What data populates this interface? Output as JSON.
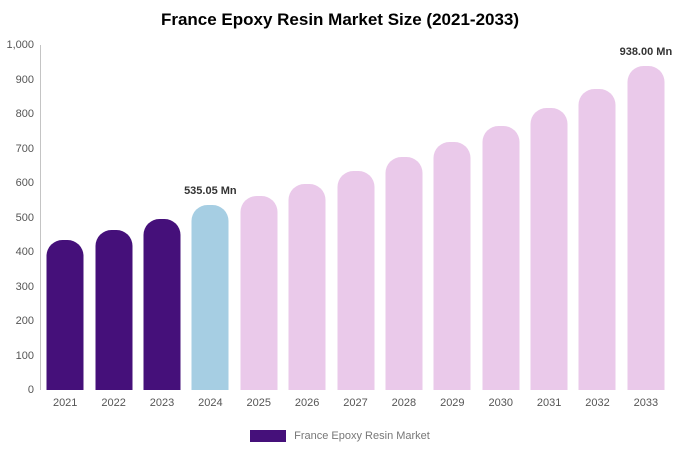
{
  "title": "France Epoxy Resin Market Size (2021-2033)",
  "legend": {
    "label": "France Epoxy Resin Market",
    "swatch_color": "#45107a"
  },
  "chart_data": {
    "type": "bar",
    "title": "France Epoxy Resin Market Size (2021-2033)",
    "categories": [
      "2021",
      "2022",
      "2023",
      "2024",
      "2025",
      "2026",
      "2027",
      "2028",
      "2029",
      "2030",
      "2031",
      "2032",
      "2033"
    ],
    "values": [
      435,
      465,
      497,
      535.05,
      562,
      598,
      635,
      676,
      719,
      766,
      817,
      872,
      938
    ],
    "unit": "Mn",
    "xlabel": "",
    "ylabel": "",
    "ylim": [
      0,
      1000
    ],
    "ytick_step": 100,
    "yticks": [
      "0",
      "100",
      "200",
      "300",
      "400",
      "500",
      "600",
      "700",
      "800",
      "900",
      "1,000"
    ],
    "bar_roles": [
      "historical",
      "historical",
      "historical",
      "current",
      "forecast",
      "forecast",
      "forecast",
      "forecast",
      "forecast",
      "forecast",
      "forecast",
      "forecast",
      "forecast"
    ],
    "colors": {
      "historical": "#45107a",
      "current": "#a6cee3",
      "forecast": "#eac9ea"
    },
    "annotations": [
      {
        "index": 3,
        "text": "535.05 Mn"
      },
      {
        "index": 12,
        "text": "938.00 Mn"
      }
    ],
    "grid": false,
    "legend_position": "bottom"
  }
}
